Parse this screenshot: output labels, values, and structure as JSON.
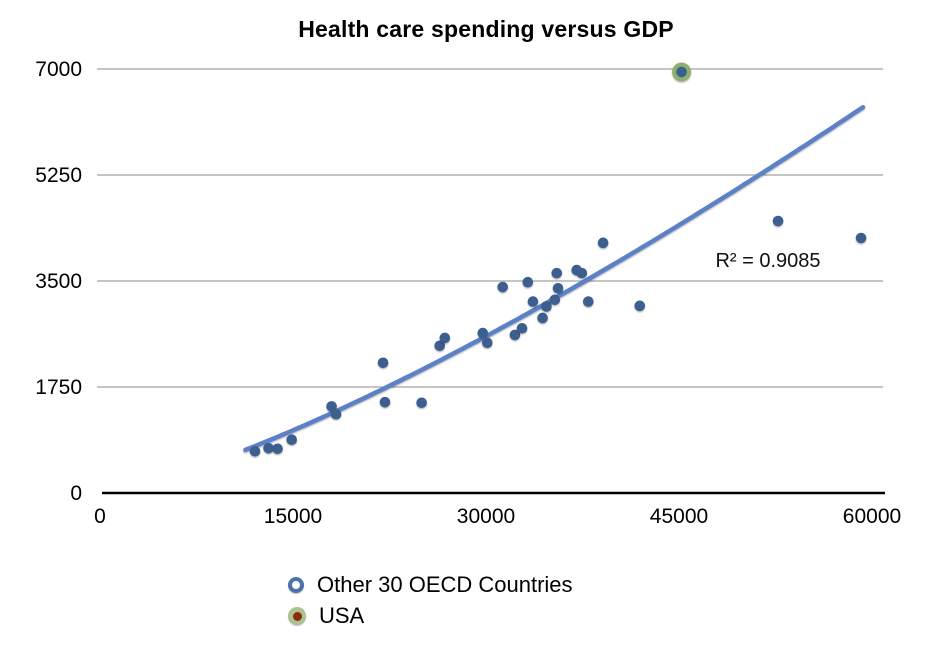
{
  "title": "Health care spending versus GDP",
  "annotation": {
    "r_squared": "R² = 0.9085"
  },
  "legend": {
    "items": [
      {
        "label": "Other 30 OECD Countries",
        "marker": "open-circle"
      },
      {
        "label": "USA",
        "marker": "green-circle-red-center"
      }
    ]
  },
  "colors": {
    "point_blue": "#3d5f90",
    "trend_line": "#5b81c6",
    "usa_outer_green": "#8cb06e",
    "usa_inner_blue": "#3d5f90",
    "legend_ring_blue": "#4a72ab",
    "legend_usa_green": "#a9c391",
    "legend_usa_red": "#8e2a09",
    "gridline": "#b2b2b2",
    "axis": "#000000"
  },
  "chart_data": {
    "type": "scatter",
    "title": "Health care spending versus GDP",
    "xlabel": "",
    "ylabel": "",
    "xlim": [
      0,
      60000
    ],
    "ylim": [
      0,
      7000
    ],
    "x_ticks": [
      0,
      15000,
      30000,
      45000,
      60000
    ],
    "x_tick_labels": [
      "0",
      "15000",
      "30000",
      "45000",
      "60000"
    ],
    "y_ticks": [
      0,
      1750,
      3500,
      5250,
      7000
    ],
    "y_tick_labels": [
      "0",
      "1750",
      "3500",
      "5250",
      "7000"
    ],
    "grid": "horizontal",
    "legend_position": "bottom",
    "series": [
      {
        "name": "Other 30 OECD Countries",
        "points": [
          [
            12050,
            690
          ],
          [
            13100,
            740
          ],
          [
            13800,
            730
          ],
          [
            14900,
            880
          ],
          [
            18000,
            1430
          ],
          [
            18350,
            1300
          ],
          [
            22000,
            2150
          ],
          [
            22150,
            1500
          ],
          [
            25000,
            1490
          ],
          [
            26400,
            2430
          ],
          [
            26800,
            2560
          ],
          [
            29750,
            2640
          ],
          [
            30100,
            2480
          ],
          [
            31300,
            3400
          ],
          [
            33250,
            3480
          ],
          [
            32250,
            2610
          ],
          [
            32800,
            2720
          ],
          [
            33650,
            3160
          ],
          [
            34400,
            2890
          ],
          [
            34700,
            3080
          ],
          [
            35350,
            3190
          ],
          [
            35500,
            3630
          ],
          [
            35600,
            3380
          ],
          [
            37050,
            3680
          ],
          [
            37450,
            3630
          ],
          [
            37950,
            3160
          ],
          [
            39100,
            4130
          ],
          [
            41950,
            3090
          ],
          [
            52700,
            4490
          ],
          [
            59150,
            4210
          ]
        ]
      },
      {
        "name": "USA",
        "points": [
          [
            45200,
            6950
          ]
        ]
      }
    ],
    "trendline": {
      "fit": "power",
      "a": 0.00312,
      "b": 1.322,
      "x_range": [
        11300,
        59300
      ],
      "label": "R² = 0.9085"
    }
  }
}
